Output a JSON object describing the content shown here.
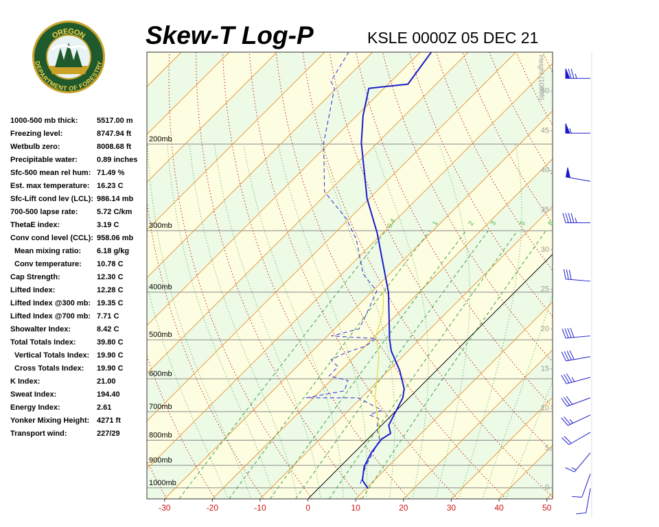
{
  "logo": {
    "top": "OREGON",
    "bottom": "DEPARTMENT OF FORESTRY"
  },
  "stats": [
    [
      "1000-500 mb thick:",
      "5517.00 m"
    ],
    [
      "Freezing level:",
      "8747.94 ft"
    ],
    [
      "Wetbulb zero:",
      "8008.68 ft"
    ],
    [
      "Precipitable water:",
      "0.89 inches"
    ],
    [
      "Sfc-500 mean rel hum:",
      "71.49 %"
    ],
    [
      "Est. max temperature:",
      "16.23 C"
    ],
    [
      "Sfc-Lift cond lev (LCL):",
      "986.14 mb"
    ],
    [
      "700-500 lapse rate:",
      "5.72 C/km"
    ],
    [
      "ThetaE index:",
      "3.19 C"
    ],
    [
      "Conv cond level (CCL):",
      "958.06 mb"
    ],
    [
      "Mean mixing ratio:",
      "6.18 g/kg"
    ],
    [
      "Conv temperature:",
      "10.78 C"
    ],
    [
      "Cap Strength:",
      "12.30 C"
    ],
    [
      "Lifted Index:",
      "12.28 C"
    ],
    [
      "Lifted Index @300 mb:",
      "19.35 C"
    ],
    [
      "Lifted Index @700 mb:",
      "7.71 C"
    ],
    [
      "Showalter Index:",
      "8.42 C"
    ],
    [
      "Total Totals Index:",
      "39.80 C"
    ],
    [
      "Vertical Totals Index:",
      "19.90 C"
    ],
    [
      "Cross Totals Index:",
      "19.90 C"
    ],
    [
      "K Index:",
      "21.00"
    ],
    [
      "Sweat Index:",
      "194.40"
    ],
    [
      "Energy Index:",
      "2.61"
    ],
    [
      "Yonker Mixing Height:",
      "4271 ft"
    ],
    [
      "Transport wind:",
      "227/29"
    ]
  ],
  "chart_data": {
    "type": "skewt",
    "title": "Skew-T Log-P",
    "subtitle": "KSLE 0000Z 05 DEC 21",
    "xlim": [
      -33.7,
      51.2
    ],
    "xticks": [
      -30,
      -20,
      -10,
      0,
      10,
      20,
      30,
      40,
      50
    ],
    "ylim": [
      1053,
      130
    ],
    "log_y": true,
    "yticks": [
      {
        "value": 200,
        "label": "200mb"
      },
      {
        "value": 300,
        "label": "300mb"
      },
      {
        "value": 400,
        "label": "400mb"
      },
      {
        "value": 500,
        "label": "500mb"
      },
      {
        "value": 600,
        "label": "600mb"
      },
      {
        "value": 700,
        "label": "700mb"
      },
      {
        "value": 800,
        "label": "800mb"
      },
      {
        "value": 900,
        "label": "900mb"
      },
      {
        "value": 1000,
        "label": "1000mb"
      }
    ],
    "y2label": "Height (1000ft)",
    "y2lim": [
      -1.4,
      54.9
    ],
    "y2ticks": [
      0,
      5,
      10,
      15,
      20,
      25,
      30,
      35,
      40,
      45,
      50
    ],
    "mixing_ratios": [
      0.4,
      1,
      2,
      3,
      5,
      8
    ],
    "series": [
      {
        "color": "#1a1acc",
        "dash": false,
        "x": [
          10.4,
          7.5,
          5.0,
          3.6,
          2.9,
          3.6,
          1.5,
          0.1,
          -1.3,
          -2.9,
          -7.7,
          -13.5,
          -16.3,
          -26.3,
          -41.2,
          -50.5,
          -63.3,
          -68.7,
          -73.2,
          -65.9,
          -67.7
        ],
        "values": [
          1003,
          965,
          905,
          849,
          796,
          775,
          746,
          700,
          656,
          629,
          577,
          527,
          499,
          401,
          303,
          258,
          199,
          175,
          154,
          151,
          130
        ]
      },
      {
        "color": "#2a2ad8",
        "dash": true,
        "x": [
          7.8,
          5.3,
          3.6,
          2.5,
          -0.3,
          -2.1,
          -4.7,
          -3.1,
          -10.7,
          -21.5,
          -15.0,
          -16.4,
          -21.3,
          -21.4,
          -24.3,
          -22.8,
          -19.9,
          -19.3,
          -29.2,
          -24.9,
          -26.3,
          -29.1,
          -35.6,
          -44.1,
          -50.5,
          -60.8,
          -71.2,
          -80.4,
          -82.6,
          -85.0
        ],
        "values": [
          981,
          905,
          835,
          796,
          758,
          722,
          711,
          695,
          656,
          656,
          635,
          605,
          592,
          567,
          549,
          532,
          515,
          497,
          491,
          475,
          446,
          398,
          367,
          313,
          284,
          250,
          199,
          154,
          149,
          130
        ]
      },
      {
        "color": "#e0d820",
        "dash": false,
        "x": [
          2.6,
          -7.1,
          -14.9,
          -19.9,
          -23.4,
          -27.7
        ],
        "values": [
          796,
          656,
          541,
          491,
          439,
          398
        ]
      }
    ],
    "winds": {
      "p": [
        147,
        190,
        238,
        289,
        380,
        491,
        541,
        596,
        656,
        711,
        771,
        849,
        937,
        1003
      ],
      "dir": [
        270,
        270,
        280,
        270,
        275,
        265,
        260,
        255,
        250,
        245,
        240,
        220,
        200,
        190
      ],
      "speed": [
        75,
        55,
        50,
        45,
        30,
        40,
        40,
        35,
        30,
        25,
        20,
        15,
        10,
        10
      ],
      "color": "#1a1acc"
    }
  }
}
